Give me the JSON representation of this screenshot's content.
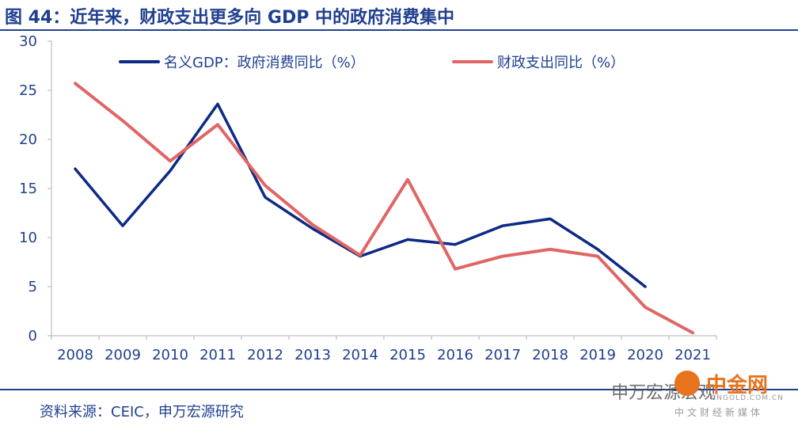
{
  "header": {
    "title": "图 44：近年来，财政支出更多向 GDP 中的政府消费集中"
  },
  "footer": {
    "source": "资料来源：CEIC，申万宏源研究"
  },
  "watermark": {
    "account": "申万宏源宏观",
    "logo_text": "中金网",
    "domain": "CNGOLD.COM.CN",
    "slogan": "中文财经新媒体"
  },
  "chart_data": {
    "type": "line",
    "categories": [
      "2008",
      "2009",
      "2010",
      "2011",
      "2012",
      "2013",
      "2014",
      "2015",
      "2016",
      "2017",
      "2018",
      "2019",
      "2020",
      "2021"
    ],
    "ylim": [
      0,
      30
    ],
    "yticks": [
      0,
      5,
      10,
      15,
      20,
      25,
      30
    ],
    "grid": false,
    "legend_position": "top",
    "series": [
      {
        "name": "名义GDP：政府消费同比（%）",
        "color": "#0d2a85",
        "values": [
          17.0,
          11.2,
          16.8,
          23.6,
          14.1,
          10.9,
          8.1,
          9.8,
          9.3,
          11.2,
          11.9,
          8.8,
          5.0,
          null
        ]
      },
      {
        "name": "财政支出同比（%）",
        "color": "#e06666",
        "values": [
          25.7,
          21.9,
          17.8,
          21.5,
          15.3,
          11.3,
          8.2,
          15.9,
          6.8,
          8.1,
          8.8,
          8.1,
          2.9,
          0.3
        ]
      }
    ]
  }
}
